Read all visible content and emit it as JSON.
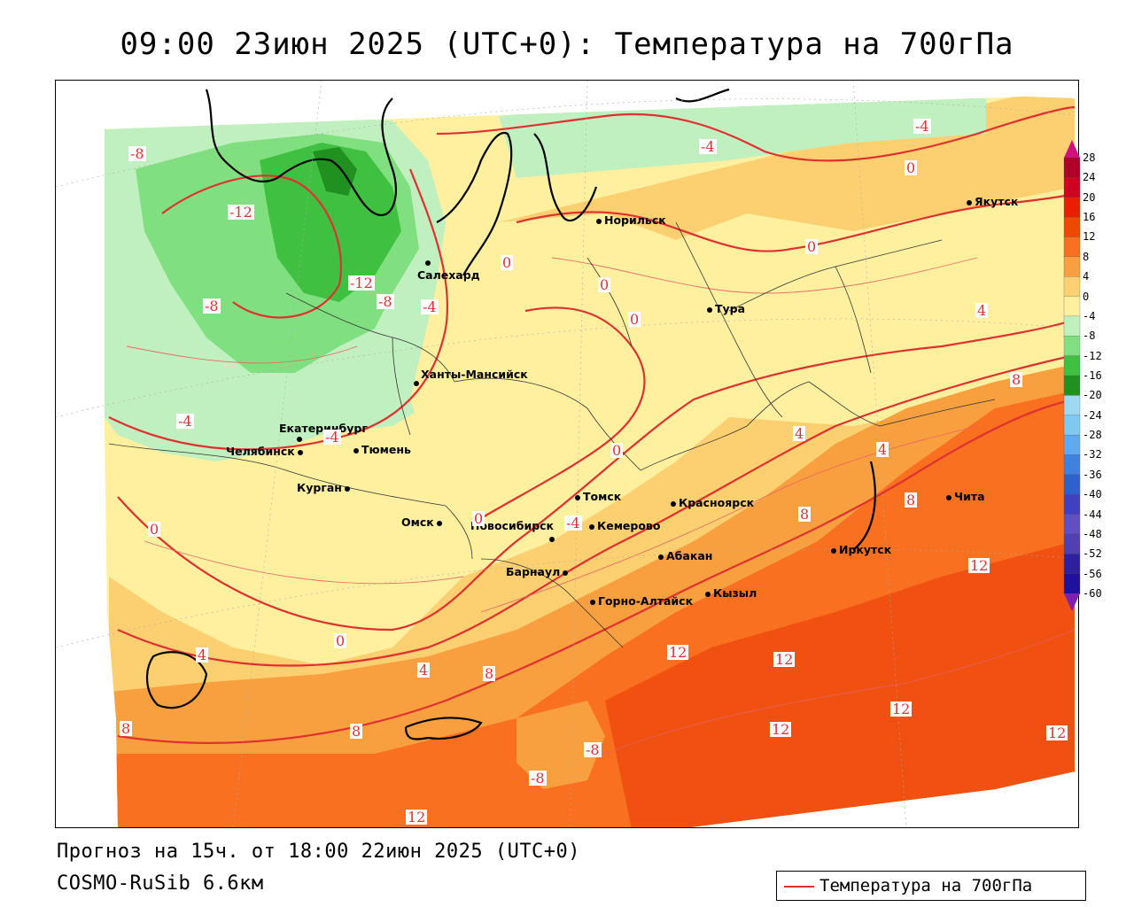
{
  "header": {
    "title": "09:00 23июн 2025 (UTC+0): Температура на 700гПа"
  },
  "footer": {
    "forecast": "Прогноз на 15ч. от 18:00 22июн 2025 (UTC+0)",
    "model": "COSMO-RuSib 6.6км"
  },
  "legend": {
    "label": "Температура на 700гПа",
    "line_color": "#e03030"
  },
  "colorbar": {
    "levels": [
      "28",
      "24",
      "20",
      "16",
      "12",
      "8",
      "4",
      "0",
      "-4",
      "-8",
      "-12",
      "-16",
      "-20",
      "-24",
      "-28",
      "-32",
      "-36",
      "-40",
      "-44",
      "-48",
      "-52",
      "-56",
      "-60"
    ],
    "colors": [
      "#b0002a",
      "#d00020",
      "#e82000",
      "#f04800",
      "#f87020",
      "#f8a040",
      "#fcd070",
      "#fff0a0",
      "#c0f0c0",
      "#80e080",
      "#40c040",
      "#209020",
      "#a0d8f0",
      "#80c8f0",
      "#60a8f0",
      "#4080e0",
      "#3060d0",
      "#4040c0",
      "#6050c0",
      "#5040b0",
      "#3020a0",
      "#2010a0",
      "#4010b0"
    ],
    "top_arrow_color": "#d01080",
    "bottom_arrow_color": "#8020b0"
  },
  "cities": [
    {
      "name": "Норильск"
    },
    {
      "name": "Якутск"
    },
    {
      "name": "Салехард"
    },
    {
      "name": "Тура"
    },
    {
      "name": "Ханты-Мансийск"
    },
    {
      "name": "Екатеринбург"
    },
    {
      "name": "Тюмень"
    },
    {
      "name": "Челябинск"
    },
    {
      "name": "Курган"
    },
    {
      "name": "Омск"
    },
    {
      "name": "Новосибирск"
    },
    {
      "name": "Томск"
    },
    {
      "name": "Кемерово"
    },
    {
      "name": "Красноярск"
    },
    {
      "name": "Абакан"
    },
    {
      "name": "Барнаул"
    },
    {
      "name": "Горно-Алтайск"
    },
    {
      "name": "Кызыл"
    },
    {
      "name": "Иркутск"
    },
    {
      "name": "Чита"
    }
  ],
  "contour_labels": [
    "-8",
    "-12",
    "-8",
    "-12",
    "-8",
    "-4",
    "-4",
    "-4",
    "0",
    "0",
    "0",
    "-4",
    "-4",
    "0",
    "0",
    "0",
    "4",
    "4",
    "4",
    "8",
    "8",
    "8",
    "12",
    "12",
    "12",
    "12",
    "12",
    "12",
    "4",
    "8",
    "8",
    "8",
    "12",
    "0",
    "0",
    "4",
    "-4",
    "0",
    "-8",
    "-8"
  ]
}
